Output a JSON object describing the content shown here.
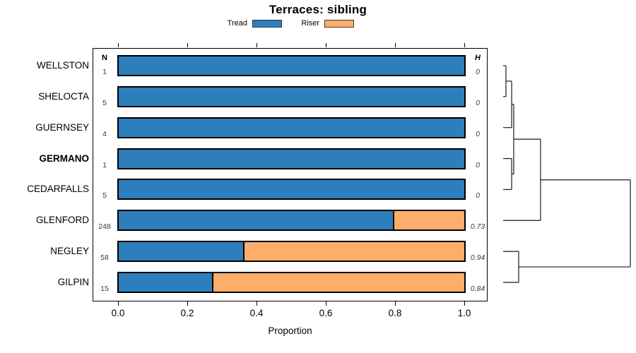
{
  "title": "Terraces: sibling",
  "legend": {
    "items": [
      {
        "label": "Tread",
        "color": "#2E7EBC"
      },
      {
        "label": "Riser",
        "color": "#FDAE6B"
      }
    ]
  },
  "columns": {
    "n_header": "N",
    "h_header": "H"
  },
  "axis": {
    "ticks": [
      "0.0",
      "0.2",
      "0.4",
      "0.6",
      "0.8",
      "1.0"
    ],
    "label": "Proportion"
  },
  "chart_data": {
    "type": "bar",
    "orientation": "horizontal",
    "stacked": true,
    "title": "Terraces: sibling",
    "xlabel": "Proportion",
    "xlim": [
      0,
      1
    ],
    "grid": false,
    "legend_position": "top",
    "categories": [
      "WELLSTON",
      "SHELOCTA",
      "GUERNSEY",
      "GERMANO",
      "CEDARFALLS",
      "GLENFORD",
      "NEGLEY",
      "GILPIN"
    ],
    "emphasized_category": "GERMANO",
    "series": [
      {
        "name": "Tread",
        "color": "#2E7EBC",
        "values": [
          1.0,
          1.0,
          1.0,
          1.0,
          1.0,
          0.795,
          0.36,
          0.27
        ]
      },
      {
        "name": "Riser",
        "color": "#FDAE6B",
        "values": [
          0.0,
          0.0,
          0.0,
          0.0,
          0.0,
          0.205,
          0.64,
          0.73
        ]
      }
    ],
    "n_values": [
      "1",
      "5",
      "4",
      "1",
      "5",
      "248",
      "58",
      "15"
    ],
    "h_values": [
      "0",
      "0",
      "0",
      "0",
      "0",
      "0.73",
      "0.94",
      "0.84"
    ],
    "dendrogram": {
      "leaf_order": [
        "WELLSTON",
        "SHELOCTA",
        "GUERNSEY",
        "GERMANO",
        "CEDARFALLS",
        "GLENFORD",
        "NEGLEY",
        "GILPIN"
      ],
      "merges": [
        {
          "children": [
            "L0",
            "L1"
          ],
          "height": 0.022
        },
        {
          "children": [
            "M0",
            "L2"
          ],
          "height": 0.067
        },
        {
          "children": [
            "L3",
            "L4"
          ],
          "height": 0.067
        },
        {
          "children": [
            "M1",
            "M2"
          ],
          "height": 0.083
        },
        {
          "children": [
            "M3",
            "L5"
          ],
          "height": 0.294
        },
        {
          "children": [
            "L6",
            "L7"
          ],
          "height": 0.122
        },
        {
          "children": [
            "M4",
            "M5"
          ],
          "height": 1.0
        }
      ]
    }
  }
}
